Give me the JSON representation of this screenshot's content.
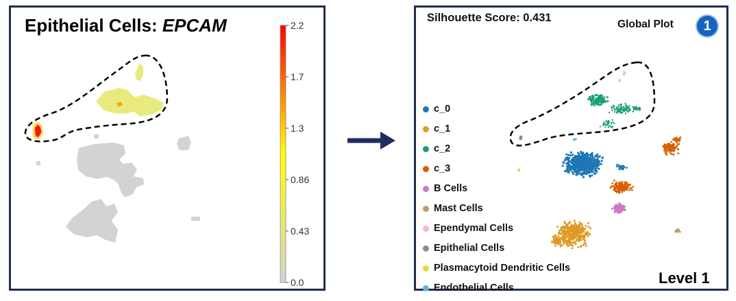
{
  "left_panel": {
    "title_prefix": "Epithelial Cells: ",
    "title_gene": "EPCAM"
  },
  "right_panel": {
    "silhouette": "Silhouette Score: 0.431",
    "global_plot": "Global Plot",
    "badge": "1",
    "level": "Level 1"
  },
  "colorbar": {
    "ticks": [
      "2.2",
      "1.7",
      "1.3",
      "0.86",
      "0.43",
      "0.0"
    ],
    "min_color": "#d3d3d3",
    "mid_color": "#ffff00",
    "max_color": "#ff0000"
  },
  "legend": {
    "items": [
      {
        "label": "c_0",
        "color": "#1f77b4"
      },
      {
        "label": "c_1",
        "color": "#e09a24"
      },
      {
        "label": "c_2",
        "color": "#1b9e77"
      },
      {
        "label": "c_3",
        "color": "#d95f02"
      },
      {
        "label": "B Cells",
        "color": "#cc79c7"
      },
      {
        "label": "Mast Cells",
        "color": "#c49a6c"
      },
      {
        "label": "Ependymal Cells",
        "color": "#f7b6d2"
      },
      {
        "label": "Epithelial Cells",
        "color": "#8c8c8c"
      },
      {
        "label": "Plasmacytoid Dendritic Cells",
        "color": "#e6d835"
      },
      {
        "label": "Endothelial Cells",
        "color": "#5bb5e6"
      }
    ]
  },
  "arrow_color": "#1f2d5e",
  "chart_data": [
    {
      "type": "heatmap",
      "title": "Epithelial Cells: EPCAM",
      "colorbar_range": [
        0.0,
        2.2
      ],
      "colorbar_ticks": [
        2.2,
        1.7,
        1.3,
        0.86,
        0.43,
        0.0
      ]
    },
    {
      "type": "scatter",
      "title": "Silhouette Score: 0.431",
      "series": [
        {
          "name": "c_0"
        },
        {
          "name": "c_1"
        },
        {
          "name": "c_2"
        },
        {
          "name": "c_3"
        },
        {
          "name": "B Cells"
        },
        {
          "name": "Mast Cells"
        },
        {
          "name": "Ependymal Cells"
        },
        {
          "name": "Epithelial Cells"
        },
        {
          "name": "Plasmacytoid Dendritic Cells"
        },
        {
          "name": "Endothelial Cells"
        }
      ]
    }
  ]
}
